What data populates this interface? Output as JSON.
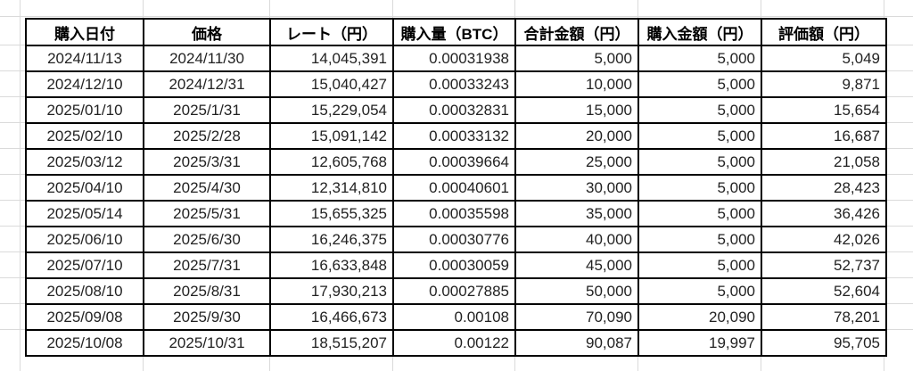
{
  "table": {
    "columns": [
      {
        "label": "購入日付",
        "align": "center"
      },
      {
        "label": "価格",
        "align": "center"
      },
      {
        "label": "レート（円）",
        "align": "right"
      },
      {
        "label": "購入量（BTC）",
        "align": "right"
      },
      {
        "label": "合計金額（円）",
        "align": "right"
      },
      {
        "label": "購入金額（円）",
        "align": "right"
      },
      {
        "label": "評価額（円）",
        "align": "right"
      }
    ],
    "rows": [
      [
        "2024/11/13",
        "2024/11/30",
        "14,045,391",
        "0.00031938",
        "5,000",
        "5,000",
        "5,049"
      ],
      [
        "2024/12/10",
        "2024/12/31",
        "15,040,427",
        "0.00033243",
        "10,000",
        "5,000",
        "9,871"
      ],
      [
        "2025/01/10",
        "2025/1/31",
        "15,229,054",
        "0.00032831",
        "15,000",
        "5,000",
        "15,654"
      ],
      [
        "2025/02/10",
        "2025/2/28",
        "15,091,142",
        "0.00033132",
        "20,000",
        "5,000",
        "16,687"
      ],
      [
        "2025/03/12",
        "2025/3/31",
        "12,605,768",
        "0.00039664",
        "25,000",
        "5,000",
        "21,058"
      ],
      [
        "2025/04/10",
        "2025/4/30",
        "12,314,810",
        "0.00040601",
        "30,000",
        "5,000",
        "28,423"
      ],
      [
        "2025/05/14",
        "2025/5/31",
        "15,655,325",
        "0.00035598",
        "35,000",
        "5,000",
        "36,426"
      ],
      [
        "2025/06/10",
        "2025/6/30",
        "16,246,375",
        "0.00030776",
        "40,000",
        "5,000",
        "42,026"
      ],
      [
        "2025/07/10",
        "2025/7/31",
        "16,633,848",
        "0.00030059",
        "45,000",
        "5,000",
        "52,737"
      ],
      [
        "2025/08/10",
        "2025/8/31",
        "17,930,213",
        "0.00027885",
        "50,000",
        "5,000",
        "52,604"
      ],
      [
        "2025/09/08",
        "2025/9/30",
        "16,466,673",
        "0.00108",
        "70,090",
        "20,090",
        "78,201"
      ],
      [
        "2025/10/08",
        "2025/10/31",
        "18,515,207",
        "0.00122",
        "90,087",
        "19,997",
        "95,705"
      ]
    ]
  },
  "colors": {
    "table_border": "#000000",
    "gridline": "#dadada",
    "text": "#222222",
    "background": "#ffffff"
  }
}
